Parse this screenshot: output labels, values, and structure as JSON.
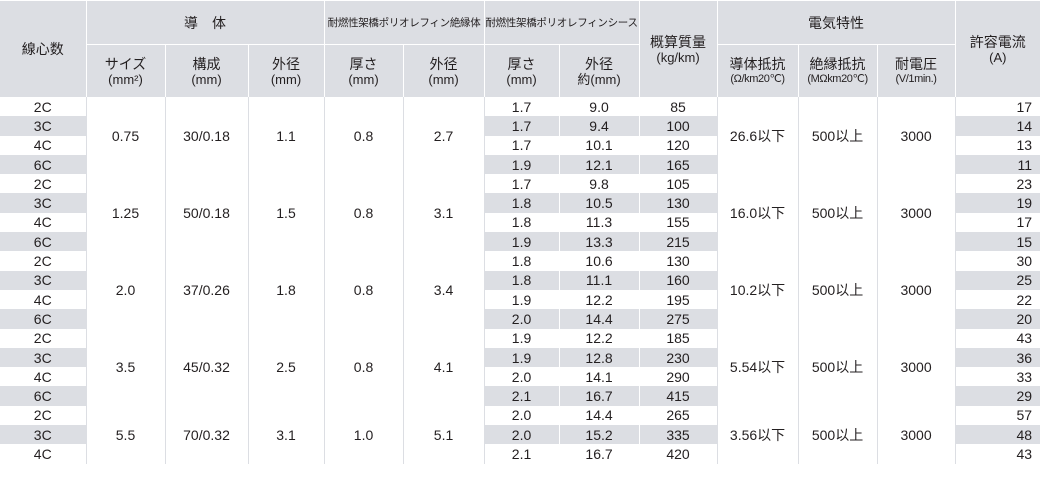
{
  "headers": {
    "cores": "線心数",
    "conductor": "導　体",
    "insulation": "耐燃性架橋ポリオレフィン絶縁体",
    "sheath": "耐燃性架橋ポリオレフィンシース",
    "mass": "概算質量",
    "mass_unit": "(kg/km)",
    "electrical": "電気特性",
    "ampacity": "許容電流",
    "ampacity_unit": "(A)",
    "size": "サイズ",
    "size_unit": "(mm²)",
    "composition": "構成",
    "composition_unit": "(mm)",
    "od": "外径",
    "od_unit": "(mm)",
    "ins_thickness": "厚さ",
    "ins_thickness_unit": "(mm)",
    "ins_od": "外径",
    "ins_od_unit": "(mm)",
    "sh_thickness": "厚さ",
    "sh_thickness_unit": "(mm)",
    "sh_od": "外径",
    "sh_od_unit": "約(mm)",
    "cond_res": "導体抵抗",
    "cond_res_unit": "(Ω/km20℃)",
    "ins_res": "絶縁抵抗",
    "ins_res_unit": "(MΩkm20℃)",
    "withstand": "耐電圧",
    "withstand_unit": "(V/1min.)"
  },
  "groups": [
    {
      "size": "0.75",
      "composition": "30/0.18",
      "od": "1.1",
      "ins_thickness": "0.8",
      "ins_od": "2.7",
      "cond_res": "26.6以下",
      "ins_res": "500以上",
      "withstand": "3000",
      "rows": [
        {
          "cores": "2C",
          "sh_thickness": "1.7",
          "sh_od": "9.0",
          "mass": "85",
          "ampacity": "17"
        },
        {
          "cores": "3C",
          "sh_thickness": "1.7",
          "sh_od": "9.4",
          "mass": "100",
          "ampacity": "14"
        },
        {
          "cores": "4C",
          "sh_thickness": "1.7",
          "sh_od": "10.1",
          "mass": "120",
          "ampacity": "13"
        },
        {
          "cores": "6C",
          "sh_thickness": "1.9",
          "sh_od": "12.1",
          "mass": "165",
          "ampacity": "11"
        }
      ]
    },
    {
      "size": "1.25",
      "composition": "50/0.18",
      "od": "1.5",
      "ins_thickness": "0.8",
      "ins_od": "3.1",
      "cond_res": "16.0以下",
      "ins_res": "500以上",
      "withstand": "3000",
      "rows": [
        {
          "cores": "2C",
          "sh_thickness": "1.7",
          "sh_od": "9.8",
          "mass": "105",
          "ampacity": "23"
        },
        {
          "cores": "3C",
          "sh_thickness": "1.8",
          "sh_od": "10.5",
          "mass": "130",
          "ampacity": "19"
        },
        {
          "cores": "4C",
          "sh_thickness": "1.8",
          "sh_od": "11.3",
          "mass": "155",
          "ampacity": "17"
        },
        {
          "cores": "6C",
          "sh_thickness": "1.9",
          "sh_od": "13.3",
          "mass": "215",
          "ampacity": "15"
        }
      ]
    },
    {
      "size": "2.0",
      "composition": "37/0.26",
      "od": "1.8",
      "ins_thickness": "0.8",
      "ins_od": "3.4",
      "cond_res": "10.2以下",
      "ins_res": "500以上",
      "withstand": "3000",
      "rows": [
        {
          "cores": "2C",
          "sh_thickness": "1.8",
          "sh_od": "10.6",
          "mass": "130",
          "ampacity": "30"
        },
        {
          "cores": "3C",
          "sh_thickness": "1.8",
          "sh_od": "11.1",
          "mass": "160",
          "ampacity": "25"
        },
        {
          "cores": "4C",
          "sh_thickness": "1.9",
          "sh_od": "12.2",
          "mass": "195",
          "ampacity": "22"
        },
        {
          "cores": "6C",
          "sh_thickness": "2.0",
          "sh_od": "14.4",
          "mass": "275",
          "ampacity": "20"
        }
      ]
    },
    {
      "size": "3.5",
      "composition": "45/0.32",
      "od": "2.5",
      "ins_thickness": "0.8",
      "ins_od": "4.1",
      "cond_res": "5.54以下",
      "ins_res": "500以上",
      "withstand": "3000",
      "rows": [
        {
          "cores": "2C",
          "sh_thickness": "1.9",
          "sh_od": "12.2",
          "mass": "185",
          "ampacity": "43"
        },
        {
          "cores": "3C",
          "sh_thickness": "1.9",
          "sh_od": "12.8",
          "mass": "230",
          "ampacity": "36"
        },
        {
          "cores": "4C",
          "sh_thickness": "2.0",
          "sh_od": "14.1",
          "mass": "290",
          "ampacity": "33"
        },
        {
          "cores": "6C",
          "sh_thickness": "2.1",
          "sh_od": "16.7",
          "mass": "415",
          "ampacity": "29"
        }
      ]
    },
    {
      "size": "5.5",
      "composition": "70/0.32",
      "od": "3.1",
      "ins_thickness": "1.0",
      "ins_od": "5.1",
      "cond_res": "3.56以下",
      "ins_res": "500以上",
      "withstand": "3000",
      "rows": [
        {
          "cores": "2C",
          "sh_thickness": "2.0",
          "sh_od": "14.4",
          "mass": "265",
          "ampacity": "57"
        },
        {
          "cores": "3C",
          "sh_thickness": "2.0",
          "sh_od": "15.2",
          "mass": "335",
          "ampacity": "48"
        },
        {
          "cores": "4C",
          "sh_thickness": "2.1",
          "sh_od": "16.7",
          "mass": "420",
          "ampacity": "43"
        }
      ]
    }
  ]
}
